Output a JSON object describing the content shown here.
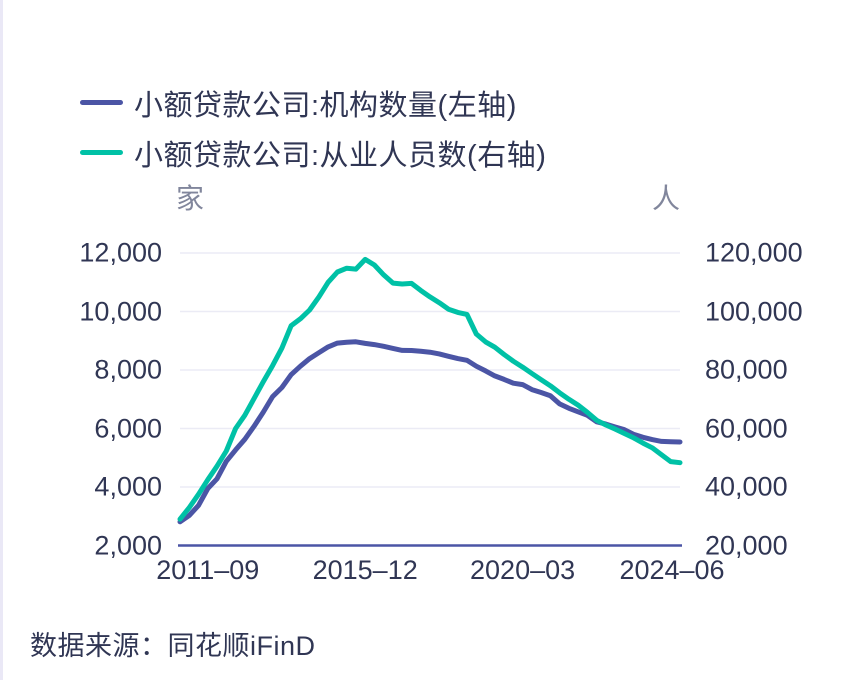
{
  "legend": {
    "items": [
      {
        "label": "小额贷款公司:机构数量(左轴)",
        "color": "#4b55a5"
      },
      {
        "label": "小额贷款公司:从业人员数(右轴)",
        "color": "#00c1a6"
      }
    ]
  },
  "axes": {
    "left_unit": "家",
    "right_unit": "人",
    "left_ticks": [
      "12,000",
      "10,000",
      "8,000",
      "6,000",
      "4,000",
      "2,000"
    ],
    "right_ticks": [
      "120,000",
      "100,000",
      "80,000",
      "60,000",
      "40,000",
      "20,000"
    ],
    "x_ticks": [
      "2011–09",
      "2015–12",
      "2020–03",
      "2024–06"
    ]
  },
  "source": {
    "text": "数据来源：同花顺iFinD"
  },
  "colors": {
    "grid": "#ebebf5",
    "axis_line": "#4b55a5",
    "text": "#303654",
    "muted_text": "#81869c"
  },
  "chart_data": {
    "type": "line",
    "x_frequency": "quarterly",
    "x_start": "2010-12",
    "x_end": "2024-06",
    "n_points": 55,
    "x_tick_labels": [
      "2011-09",
      "2015-12",
      "2020-03",
      "2024-06"
    ],
    "x_tick_indices": [
      3,
      20,
      37,
      54
    ],
    "grid": true,
    "legend_position": "top-left",
    "left_axis": {
      "unit": "家",
      "min": 2000,
      "max": 12000,
      "ticks": [
        12000,
        10000,
        8000,
        6000,
        4000,
        2000
      ]
    },
    "right_axis": {
      "unit": "人",
      "min": 20000,
      "max": 120000,
      "ticks": [
        120000,
        100000,
        80000,
        60000,
        40000,
        20000
      ]
    },
    "series": [
      {
        "name": "小额贷款公司:机构数量(左轴)",
        "axis": "left",
        "color": "#4b55a5",
        "values": [
          2810,
          3030,
          3370,
          3950,
          4280,
          4880,
          5270,
          5630,
          6080,
          6560,
          7090,
          7400,
          7840,
          8130,
          8390,
          8590,
          8790,
          8920,
          8950,
          8965,
          8910,
          8870,
          8810,
          8740,
          8670,
          8665,
          8640,
          8610,
          8550,
          8470,
          8390,
          8330,
          8130,
          7970,
          7800,
          7680,
          7550,
          7500,
          7330,
          7230,
          7120,
          6840,
          6690,
          6570,
          6450,
          6230,
          6150,
          6050,
          5960,
          5800,
          5700,
          5620,
          5560,
          5545,
          5540
        ]
      },
      {
        "name": "小额贷款公司:从业人员数(右轴)",
        "axis": "right",
        "color": "#00c1a6",
        "values": [
          29000,
          33000,
          37500,
          42500,
          47100,
          52300,
          60000,
          64500,
          70300,
          76000,
          81500,
          87500,
          95100,
          97500,
          100500,
          105000,
          110000,
          113500,
          114800,
          114500,
          117800,
          115900,
          112500,
          109700,
          109400,
          109600,
          107200,
          105000,
          103000,
          100800,
          99700,
          99000,
          92300,
          89600,
          87800,
          85300,
          83000,
          81000,
          78800,
          76700,
          74600,
          72200,
          70000,
          68000,
          65500,
          62800,
          61200,
          59800,
          58300,
          56800,
          55000,
          53400,
          51000,
          48700,
          48300
        ]
      }
    ]
  }
}
